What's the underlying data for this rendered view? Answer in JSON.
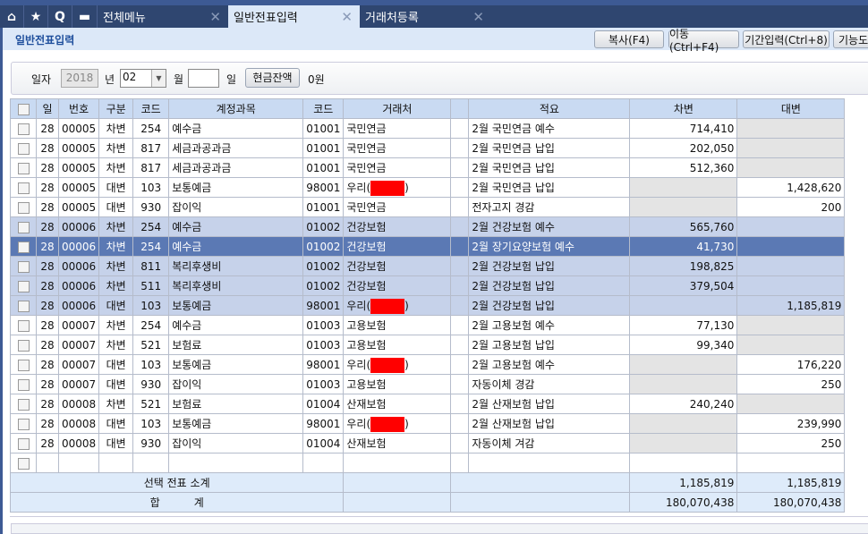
{
  "tabs": {
    "icons": [
      "home-icon",
      "star-icon",
      "search-q-icon",
      "calendar-icon"
    ],
    "items": [
      {
        "label": "전체메뉴"
      },
      {
        "label": "일반전표입력",
        "active": true
      },
      {
        "label": "거래처등록"
      }
    ]
  },
  "page": {
    "title": "일반전표입력",
    "buttons": [
      "복사(F4)",
      "이동(Ctrl+F4)",
      "기간입력(Ctrl+8)",
      "기능도"
    ]
  },
  "filter": {
    "date_label": "일자",
    "year": "2018",
    "year_unit": "년",
    "month": "02",
    "month_unit": "월",
    "day": "",
    "day_unit": "일",
    "cash_button": "현금잔액",
    "cash_value": "0원"
  },
  "table": {
    "headers": [
      "일",
      "번호",
      "구분",
      "코드",
      "계정과목",
      "코드",
      "거래처",
      "",
      "적요",
      "차변",
      "대변"
    ],
    "rows": [
      [
        "28",
        "00005",
        "차변",
        "254",
        "예수금",
        "01001",
        "국민연금",
        "",
        "2월 국민연금 예수",
        "714,410",
        ""
      ],
      [
        "28",
        "00005",
        "차변",
        "817",
        "세금과공과금",
        "01001",
        "국민연금",
        "",
        "2월 국민연금 납입",
        "202,050",
        ""
      ],
      [
        "28",
        "00005",
        "차변",
        "817",
        "세금과공과금",
        "01001",
        "국민연금",
        "",
        "2월 국민연금 납입",
        "512,360",
        ""
      ],
      [
        "28",
        "00005",
        "대변",
        "103",
        "보통예금",
        "98001",
        "우리()",
        "",
        "2월 국민연금 납입",
        "",
        "1,428,620"
      ],
      [
        "28",
        "00005",
        "대변",
        "930",
        "잡이익",
        "01001",
        "국민연금",
        "",
        "전자고지 경감",
        "",
        "200"
      ],
      [
        "28",
        "00006",
        "차변",
        "254",
        "예수금",
        "01002",
        "건강보험",
        "",
        "2월 건강보험 예수",
        "565,760",
        ""
      ],
      [
        "28",
        "00006",
        "차변",
        "254",
        "예수금",
        "01002",
        "건강보험",
        "",
        "2월 장기요양보험 예수",
        "41,730",
        ""
      ],
      [
        "28",
        "00006",
        "차변",
        "811",
        "복리후생비",
        "01002",
        "건강보험",
        "",
        "2월 건강보험 납입",
        "198,825",
        ""
      ],
      [
        "28",
        "00006",
        "차변",
        "511",
        "복리후생비",
        "01002",
        "건강보험",
        "",
        "2월 건강보험 납입",
        "379,504",
        ""
      ],
      [
        "28",
        "00006",
        "대변",
        "103",
        "보통예금",
        "98001",
        "우리()",
        "",
        "2월 건강보험 납입",
        "",
        "1,185,819"
      ],
      [
        "28",
        "00007",
        "차변",
        "254",
        "예수금",
        "01003",
        "고용보험",
        "",
        "2월 고용보험 예수",
        "77,130",
        ""
      ],
      [
        "28",
        "00007",
        "차변",
        "521",
        "보험료",
        "01003",
        "고용보험",
        "",
        "2월 고용보험 납입",
        "99,340",
        ""
      ],
      [
        "28",
        "00007",
        "대변",
        "103",
        "보통예금",
        "98001",
        "우리()",
        "",
        "2월 고용보험 예수",
        "",
        "176,220"
      ],
      [
        "28",
        "00007",
        "대변",
        "930",
        "잡이익",
        "01003",
        "고용보험",
        "",
        "자동이체 경감",
        "",
        "250"
      ],
      [
        "28",
        "00008",
        "차변",
        "521",
        "보험료",
        "01004",
        "산재보험",
        "",
        "2월 산재보험 납입",
        "240,240",
        ""
      ],
      [
        "28",
        "00008",
        "대변",
        "103",
        "보통예금",
        "98001",
        "우리()",
        "",
        "2월 산재보험 납입",
        "",
        "239,990"
      ],
      [
        "28",
        "00008",
        "대변",
        "930",
        "잡이익",
        "01004",
        "산재보험",
        "",
        "자동이체 겨감",
        "",
        "250"
      ]
    ],
    "selected_row": 6,
    "highlighted_voucher": "00006",
    "subtotal": {
      "label": "선택 전표 소계",
      "debit": "1,185,819",
      "credit": "1,185,819"
    },
    "total": {
      "label": "합          계",
      "debit": "180,070,438",
      "credit": "180,070,438"
    }
  },
  "colors": {
    "tabbar": "#2f4670",
    "header": "#c9daf2",
    "selected": "#5b79b4",
    "voucher_highlight": "#c6d2ea",
    "redaction": "#ff0000"
  }
}
